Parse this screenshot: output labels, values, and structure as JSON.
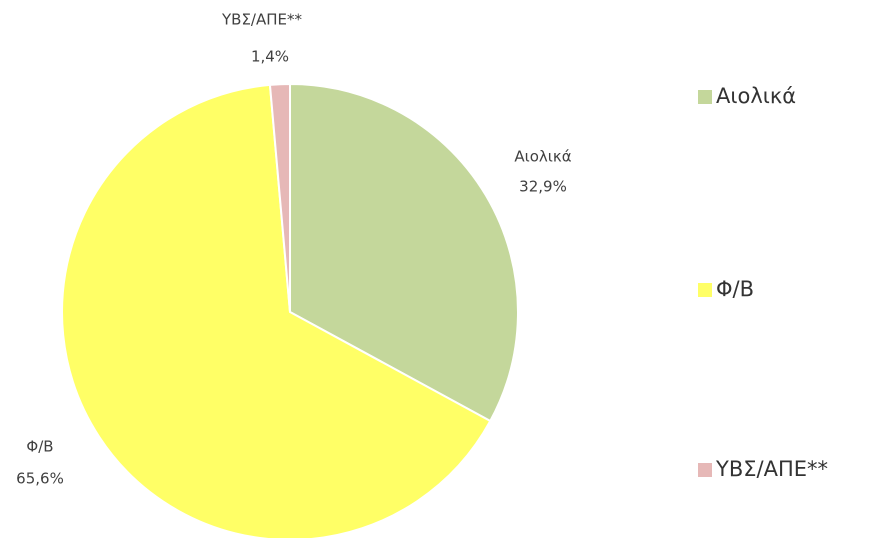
{
  "chart_data": {
    "type": "pie",
    "categories": [
      "Αιολικά",
      "Φ/Β",
      "ΥΒΣ/ΑΠΕ**"
    ],
    "values": [
      32.9,
      65.6,
      1.4
    ],
    "value_labels": [
      "32,9%",
      "65,6%",
      "1,4%"
    ],
    "colors": [
      "#c4d79b",
      "#ffff66",
      "#e6b8b7"
    ],
    "legend": "right"
  }
}
